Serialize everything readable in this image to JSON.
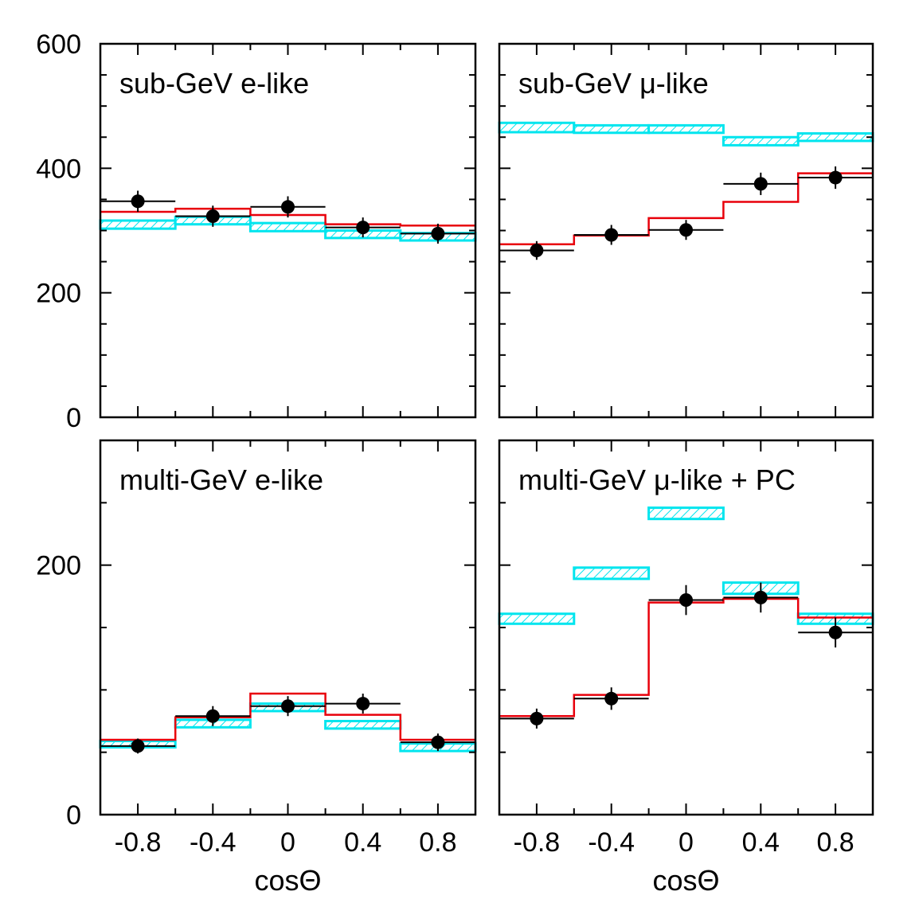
{
  "colors": {
    "prediction_band": "#00e5ee",
    "best_fit_line": "#e8000b",
    "data": "#000000",
    "frame": "#000000"
  },
  "x_axis": {
    "label": "cosΘ",
    "ticks": [
      -0.8,
      -0.4,
      0,
      0.4,
      0.8
    ],
    "tick_labels": [
      "-0.8",
      "-0.4",
      "0",
      "0.4",
      "0.8"
    ],
    "range": [
      -1,
      1
    ]
  },
  "chart_data": [
    {
      "type": "histogram",
      "title": "sub-GeV e-like",
      "bin_edges": [
        -1,
        -0.6,
        -0.2,
        0.2,
        0.6,
        1
      ],
      "ylim": [
        0,
        600
      ],
      "yticks": [
        0,
        200,
        400,
        600
      ],
      "ytick_labels": [
        "0",
        "200",
        "400",
        "600"
      ],
      "data": {
        "y": [
          347,
          323,
          338,
          305,
          295
        ],
        "yerr": [
          17,
          17,
          17,
          16,
          16
        ]
      },
      "best_fit": [
        330,
        335,
        325,
        310,
        308
      ],
      "prediction_band": [
        [
          303,
          316
        ],
        [
          310,
          322
        ],
        [
          299,
          312
        ],
        [
          288,
          300
        ],
        [
          284,
          296
        ]
      ]
    },
    {
      "type": "histogram",
      "title": "sub-GeV μ-like",
      "bin_edges": [
        -1,
        -0.6,
        -0.2,
        0.2,
        0.6,
        1
      ],
      "ylim": [
        0,
        600
      ],
      "yticks": [
        0,
        200,
        400,
        600
      ],
      "ytick_labels": [
        "",
        "",
        "",
        ""
      ],
      "data": {
        "y": [
          268,
          293,
          301,
          375,
          385
        ],
        "yerr": [
          15,
          16,
          16,
          18,
          18
        ]
      },
      "best_fit": [
        278,
        292,
        320,
        346,
        392
      ],
      "prediction_band": [
        [
          458,
          473
        ],
        [
          457,
          469
        ],
        [
          457,
          469
        ],
        [
          437,
          450
        ],
        [
          444,
          456
        ]
      ]
    },
    {
      "type": "histogram",
      "title": "multi-GeV e-like",
      "bin_edges": [
        -1,
        -0.6,
        -0.2,
        0.2,
        0.6,
        1
      ],
      "ylim": [
        0,
        300
      ],
      "yticks": [
        0,
        200
      ],
      "ytick_labels": [
        "0",
        "200"
      ],
      "data": {
        "y": [
          55,
          79,
          87,
          89,
          58
        ],
        "yerr": [
          6,
          8,
          8,
          8,
          7
        ]
      },
      "best_fit": [
        60,
        78,
        97,
        80,
        60
      ],
      "prediction_band": [
        [
          54,
          59
        ],
        [
          70,
          76
        ],
        [
          83,
          89
        ],
        [
          69,
          75
        ],
        [
          51,
          57
        ]
      ]
    },
    {
      "type": "histogram",
      "title": "multi-GeV μ-like + PC",
      "bin_edges": [
        -1,
        -0.6,
        -0.2,
        0.2,
        0.6,
        1
      ],
      "ylim": [
        0,
        300
      ],
      "yticks": [
        0,
        200
      ],
      "ytick_labels": [
        "",
        ""
      ],
      "data": {
        "y": [
          77,
          93,
          172,
          174,
          146
        ],
        "yerr": [
          8,
          9,
          12,
          12,
          12
        ]
      },
      "best_fit": [
        79,
        96,
        170,
        173,
        158
      ],
      "prediction_band": [
        [
          153,
          161
        ],
        [
          189,
          198
        ],
        [
          237,
          246
        ],
        [
          177,
          186
        ],
        [
          153,
          161
        ]
      ]
    }
  ]
}
